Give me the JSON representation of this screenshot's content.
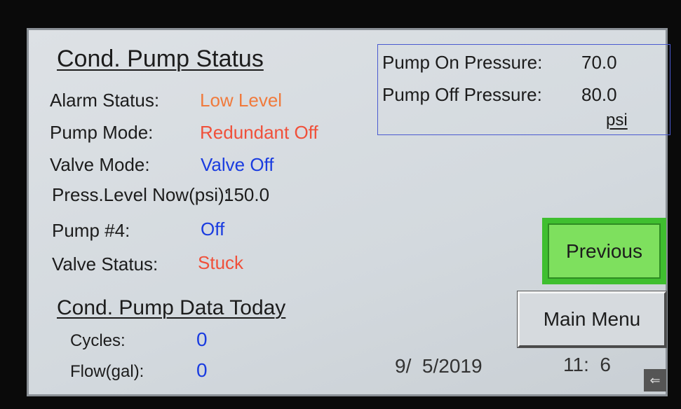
{
  "screen": {
    "title": "Cond. Pump Status",
    "status": [
      {
        "label": "Alarm Status:",
        "value": "Low Level"
      },
      {
        "label": "Pump Mode:",
        "value": "Redundant Off"
      },
      {
        "label": "Valve Mode:",
        "value": "Valve Off"
      },
      {
        "label": "Press.Level Now(psi):",
        "value": "150.0"
      },
      {
        "label": "Pump #4:",
        "value": "Off"
      },
      {
        "label": "Valve Status:",
        "value": "Stuck"
      }
    ],
    "pressure": {
      "on_label": "Pump On Pressure:",
      "on_value": "70.0",
      "off_label": "Pump Off Pressure:",
      "off_value": "80.0",
      "unit": "psi"
    },
    "buttons": {
      "previous": "Previous",
      "main_menu": "Main Menu"
    },
    "data_title": "Cond. Pump Data Today",
    "data": [
      {
        "label": "Cycles:",
        "value": "0"
      },
      {
        "label": "Flow(gal):",
        "value": "0"
      }
    ],
    "date": "9/  5/2019",
    "time": "11:  6"
  }
}
